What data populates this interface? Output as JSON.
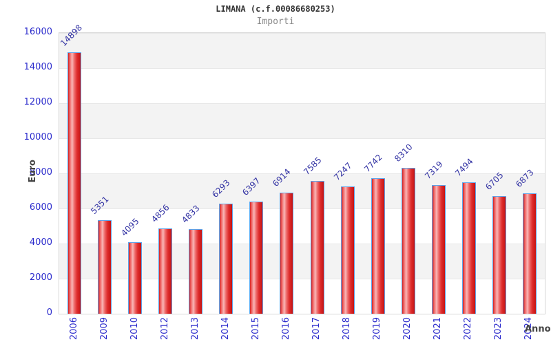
{
  "header": {
    "title": "LIMANA (c.f.00086680253)",
    "subtitle": "Importi"
  },
  "chart_data": {
    "type": "bar",
    "title": "LIMANA (c.f.00086680253)",
    "subtitle": "Importi",
    "xlabel": "Anno",
    "ylabel": "Euro",
    "categories": [
      "2006",
      "2009",
      "2010",
      "2012",
      "2013",
      "2014",
      "2015",
      "2016",
      "2017",
      "2018",
      "2019",
      "2020",
      "2021",
      "2022",
      "2023",
      "2024"
    ],
    "values": [
      14898,
      5351,
      4095,
      4856,
      4833,
      6293,
      6397,
      6914,
      7585,
      7247,
      7742,
      8310,
      7319,
      7494,
      6705,
      6873
    ],
    "ylim": [
      0,
      16000
    ],
    "yticks": [
      0,
      2000,
      4000,
      6000,
      8000,
      10000,
      12000,
      14000,
      16000
    ],
    "grid": "horizontal-bands",
    "legend": "none",
    "bar_fill_color": "#e03030",
    "bar_highlight_color": "#f9b6b6",
    "bar_border_color": "#5ea4ea",
    "value_label_color": "#3434a4",
    "tick_label_color": "#2a2acc",
    "band_color_odd": "#f3f3f3",
    "band_color_even": "#ffffff",
    "axis_title_color": "#444444"
  }
}
